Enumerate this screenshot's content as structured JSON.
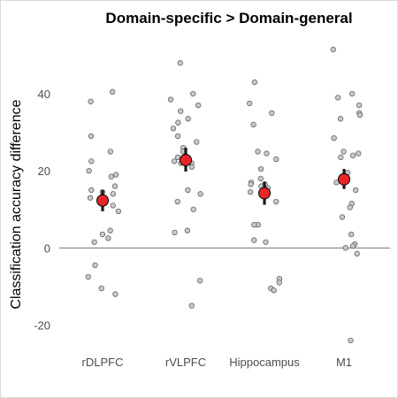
{
  "chart_data": {
    "type": "scatter",
    "title": "Domain-specific > Domain-general",
    "ylabel": "Classification accuracy difference",
    "xlabel": "",
    "categories": [
      "rDLPFC",
      "rVLPFC",
      "Hippocampus",
      "M1"
    ],
    "ylim": [
      -30,
      54
    ],
    "yticks": [
      -20,
      0,
      20,
      40
    ],
    "reference_line_y": 0,
    "grid": false,
    "colors": {
      "point_fill": "#c8c8c8",
      "point_stroke": "#555555",
      "mean_fill": "#e8262a",
      "mean_stroke": "#000000",
      "error_bar": "#1a1a1a",
      "zero_line": "#444444"
    },
    "series": [
      {
        "category": "rDLPFC",
        "mean": 12.3,
        "error": [
          9.5,
          15.0
        ],
        "points": [
          40.5,
          38,
          29,
          25,
          22.5,
          20,
          19,
          18.5,
          16,
          15,
          14.5,
          14,
          13,
          11,
          9.5,
          4.5,
          3.5,
          2.5,
          1.5,
          -4.5,
          -7.5,
          -10.5,
          -12
        ]
      },
      {
        "category": "rVLPFC",
        "mean": 22.8,
        "error": [
          19.8,
          26.0
        ],
        "points": [
          48,
          40,
          38.5,
          37,
          35.5,
          33.5,
          32.5,
          31,
          29,
          27.5,
          26,
          25,
          23.5,
          22.5,
          22,
          22,
          21,
          15,
          14,
          12,
          10,
          4.5,
          4,
          -8.5,
          -15
        ]
      },
      {
        "category": "Hippocampus",
        "mean": 14.2,
        "error": [
          11.2,
          17.2
        ],
        "points": [
          43,
          37.5,
          35,
          32,
          25,
          24.5,
          23,
          20.5,
          18,
          17,
          16.5,
          16.5,
          16,
          15.5,
          14.5,
          12,
          6,
          6,
          2,
          1.5,
          -8,
          -9,
          -10.5,
          -11
        ]
      },
      {
        "category": "M1",
        "mean": 17.8,
        "error": [
          15.3,
          20.5
        ],
        "points": [
          51.5,
          40,
          39,
          37,
          35,
          34.5,
          33.5,
          28.5,
          25,
          24.5,
          24,
          23.5,
          19.5,
          17,
          15,
          11.5,
          10.5,
          8,
          3.5,
          1,
          0.5,
          0,
          -1.5,
          -24
        ]
      }
    ]
  }
}
